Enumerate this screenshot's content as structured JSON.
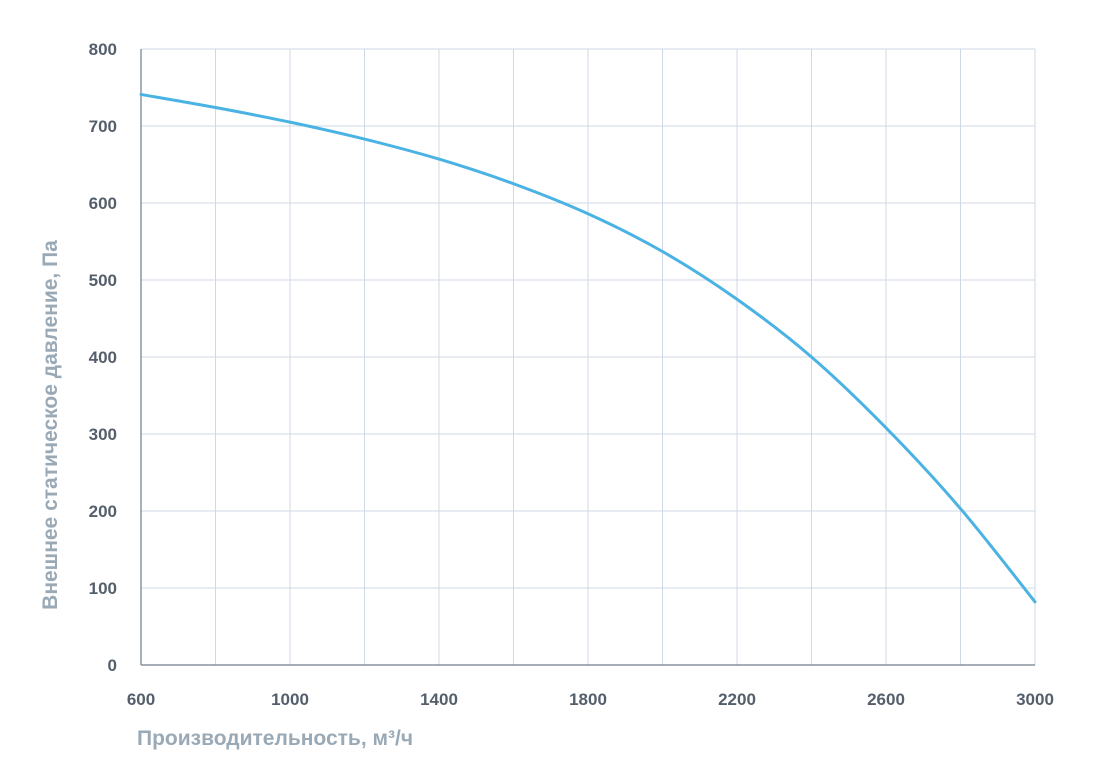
{
  "chart_data": {
    "type": "line",
    "title": "",
    "xlabel": "Производительность, м³/ч",
    "ylabel": "Внешнее статическое давление, Па",
    "xlim": [
      600,
      3000
    ],
    "ylim": [
      0,
      800
    ],
    "x_ticks": [
      600,
      1000,
      1400,
      1800,
      2200,
      2600,
      3000
    ],
    "y_ticks": [
      0,
      100,
      200,
      300,
      400,
      500,
      600,
      700,
      800
    ],
    "x_minor_grid": [
      800,
      1200,
      1600,
      2000,
      2400,
      2800
    ],
    "grid": true,
    "legend": "none",
    "series": [
      {
        "color": "#4bb3e3",
        "x": [
          600,
          800,
          1000,
          1200,
          1400,
          1600,
          1800,
          2000,
          2200,
          2400,
          2600,
          2800,
          3000
        ],
        "values": [
          741,
          724,
          705,
          683,
          657,
          625,
          586,
          537,
          475,
          400,
          308,
          203,
          82
        ]
      }
    ]
  }
}
